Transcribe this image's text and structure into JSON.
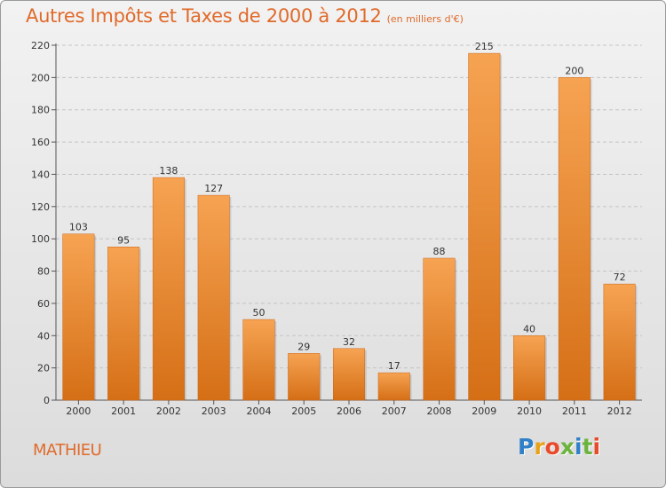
{
  "chart_data": {
    "type": "bar",
    "title": "Autres Impôts et Taxes de 2000 à 2012",
    "subtitle": "(en milliers d'€)",
    "categories": [
      "2000",
      "2001",
      "2002",
      "2003",
      "2004",
      "2005",
      "2006",
      "2007",
      "2008",
      "2009",
      "2010",
      "2011",
      "2012"
    ],
    "values": [
      103,
      95,
      138,
      127,
      50,
      29,
      32,
      17,
      88,
      215,
      40,
      200,
      72
    ],
    "ylim": [
      0,
      220
    ],
    "yticks": [
      0,
      20,
      40,
      60,
      80,
      100,
      120,
      140,
      160,
      180,
      200,
      220
    ],
    "grid": "horizontal dashed",
    "bar_color": "#f0913a"
  },
  "footer": {
    "commune": "MATHIEU",
    "logo": {
      "letters": [
        "P",
        "r",
        "o",
        "x",
        "i",
        "t",
        "i"
      ],
      "colors": [
        "#2f80c8",
        "#e8a21a",
        "#e84a2a",
        "#6cb33e",
        "#2f80c8",
        "#6cb33e",
        "#e84a2a"
      ]
    }
  }
}
